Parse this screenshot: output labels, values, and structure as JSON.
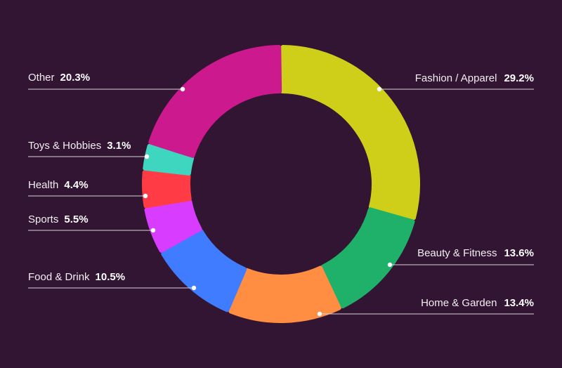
{
  "chart_data": {
    "type": "pie",
    "title": "",
    "slices": [
      {
        "label": "Fashion / Apparel",
        "value": 29.2,
        "pct_label": "29.2%",
        "color": "#cfcf1a"
      },
      {
        "label": "Beauty & Fitness",
        "value": 13.6,
        "pct_label": "13.6%",
        "color": "#1fb169"
      },
      {
        "label": "Home & Garden",
        "value": 13.4,
        "pct_label": "13.4%",
        "color": "#ff8d42"
      },
      {
        "label": "Food & Drink",
        "value": 10.5,
        "pct_label": "10.5%",
        "color": "#3f7cff"
      },
      {
        "label": "Sports",
        "value": 5.5,
        "pct_label": "5.5%",
        "color": "#d83cff"
      },
      {
        "label": "Health",
        "value": 4.4,
        "pct_label": "4.4%",
        "color": "#ff3b45"
      },
      {
        "label": "Toys & Hobbies",
        "value": 3.1,
        "pct_label": "3.1%",
        "color": "#3fd6bf"
      },
      {
        "label": "Other",
        "value": 20.3,
        "pct_label": "20.3%",
        "color": "#cc1a8e"
      }
    ],
    "legend": "callouts",
    "background": "#321433"
  }
}
